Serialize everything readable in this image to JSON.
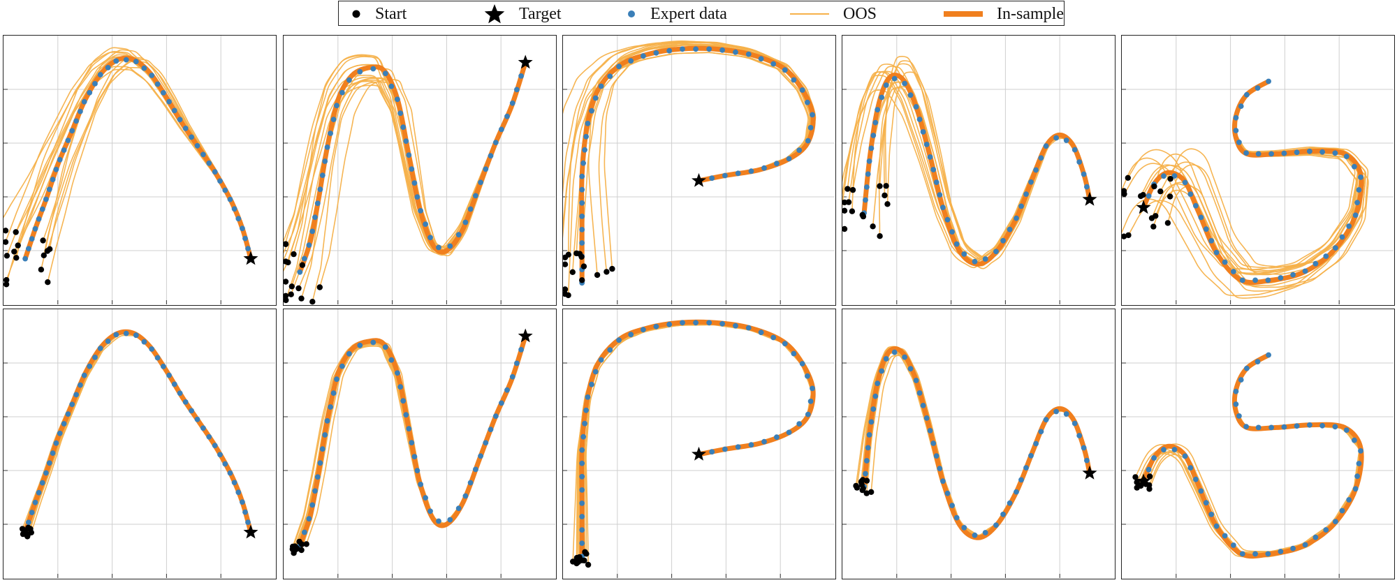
{
  "legend": {
    "start": "Start",
    "target": "Target",
    "expert": "Expert data",
    "oos": "OOS",
    "insample": "In-sample"
  },
  "colors": {
    "expert": "#3a7fb8",
    "insample": "#f07f1e",
    "oos": "#f6b14a",
    "start": "#000000",
    "target": "#000000",
    "grid": "#cfcfcf"
  },
  "chart_data": {
    "type": "line",
    "layout": "2 rows x 5 columns (top: OOS rollouts widely spread, bottom: tighter rollouts)",
    "grid": true,
    "tick_labels": false,
    "legend_position": "top-center",
    "shapes": [
      {
        "name": "",
        "target": [
          0.91,
          0.83
        ],
        "expert": [
          [
            0.08,
            0.83
          ],
          [
            0.12,
            0.71
          ],
          [
            0.16,
            0.6
          ],
          [
            0.2,
            0.48
          ],
          [
            0.25,
            0.36
          ],
          [
            0.3,
            0.24
          ],
          [
            0.36,
            0.14
          ],
          [
            0.42,
            0.09
          ],
          [
            0.48,
            0.09
          ],
          [
            0.54,
            0.14
          ],
          [
            0.6,
            0.23
          ],
          [
            0.66,
            0.33
          ],
          [
            0.72,
            0.42
          ],
          [
            0.78,
            0.51
          ],
          [
            0.84,
            0.62
          ],
          [
            0.88,
            0.72
          ],
          [
            0.91,
            0.83
          ]
        ]
      },
      {
        "name": "",
        "target": [
          0.89,
          0.1
        ],
        "expert": [
          [
            0.06,
            0.88
          ],
          [
            0.1,
            0.76
          ],
          [
            0.13,
            0.6
          ],
          [
            0.16,
            0.42
          ],
          [
            0.2,
            0.24
          ],
          [
            0.25,
            0.15
          ],
          [
            0.31,
            0.12
          ],
          [
            0.37,
            0.13
          ],
          [
            0.42,
            0.24
          ],
          [
            0.46,
            0.44
          ],
          [
            0.5,
            0.64
          ],
          [
            0.55,
            0.78
          ],
          [
            0.6,
            0.8
          ],
          [
            0.66,
            0.72
          ],
          [
            0.72,
            0.56
          ],
          [
            0.78,
            0.4
          ],
          [
            0.84,
            0.26
          ],
          [
            0.89,
            0.1
          ]
        ]
      },
      {
        "name": "",
        "target": [
          0.5,
          0.54
        ],
        "expert": [
          [
            0.07,
            0.92
          ],
          [
            0.07,
            0.72
          ],
          [
            0.07,
            0.52
          ],
          [
            0.09,
            0.33
          ],
          [
            0.13,
            0.2
          ],
          [
            0.21,
            0.11
          ],
          [
            0.31,
            0.07
          ],
          [
            0.43,
            0.05
          ],
          [
            0.56,
            0.05
          ],
          [
            0.69,
            0.07
          ],
          [
            0.81,
            0.12
          ],
          [
            0.88,
            0.2
          ],
          [
            0.92,
            0.3
          ],
          [
            0.9,
            0.4
          ],
          [
            0.83,
            0.46
          ],
          [
            0.72,
            0.5
          ],
          [
            0.6,
            0.52
          ],
          [
            0.5,
            0.54
          ]
        ]
      },
      {
        "name": "",
        "target": [
          0.91,
          0.61
        ],
        "expert": [
          [
            0.08,
            0.66
          ],
          [
            0.1,
            0.46
          ],
          [
            0.13,
            0.27
          ],
          [
            0.17,
            0.16
          ],
          [
            0.22,
            0.16
          ],
          [
            0.27,
            0.26
          ],
          [
            0.32,
            0.44
          ],
          [
            0.37,
            0.64
          ],
          [
            0.43,
            0.8
          ],
          [
            0.5,
            0.85
          ],
          [
            0.57,
            0.8
          ],
          [
            0.64,
            0.68
          ],
          [
            0.7,
            0.53
          ],
          [
            0.75,
            0.41
          ],
          [
            0.8,
            0.37
          ],
          [
            0.85,
            0.41
          ],
          [
            0.89,
            0.52
          ],
          [
            0.91,
            0.61
          ]
        ]
      },
      {
        "name": "",
        "target": [
          0.08,
          0.64
        ],
        "expert": [
          [
            0.08,
            0.64
          ],
          [
            0.12,
            0.55
          ],
          [
            0.17,
            0.51
          ],
          [
            0.23,
            0.54
          ],
          [
            0.28,
            0.65
          ],
          [
            0.35,
            0.81
          ],
          [
            0.44,
            0.91
          ],
          [
            0.55,
            0.91
          ],
          [
            0.67,
            0.88
          ],
          [
            0.78,
            0.8
          ],
          [
            0.86,
            0.67
          ],
          [
            0.88,
            0.52
          ],
          [
            0.82,
            0.44
          ],
          [
            0.7,
            0.43
          ],
          [
            0.57,
            0.44
          ],
          [
            0.46,
            0.44
          ],
          [
            0.42,
            0.38
          ],
          [
            0.42,
            0.3
          ],
          [
            0.46,
            0.22
          ],
          [
            0.54,
            0.17
          ]
        ]
      }
    ]
  }
}
